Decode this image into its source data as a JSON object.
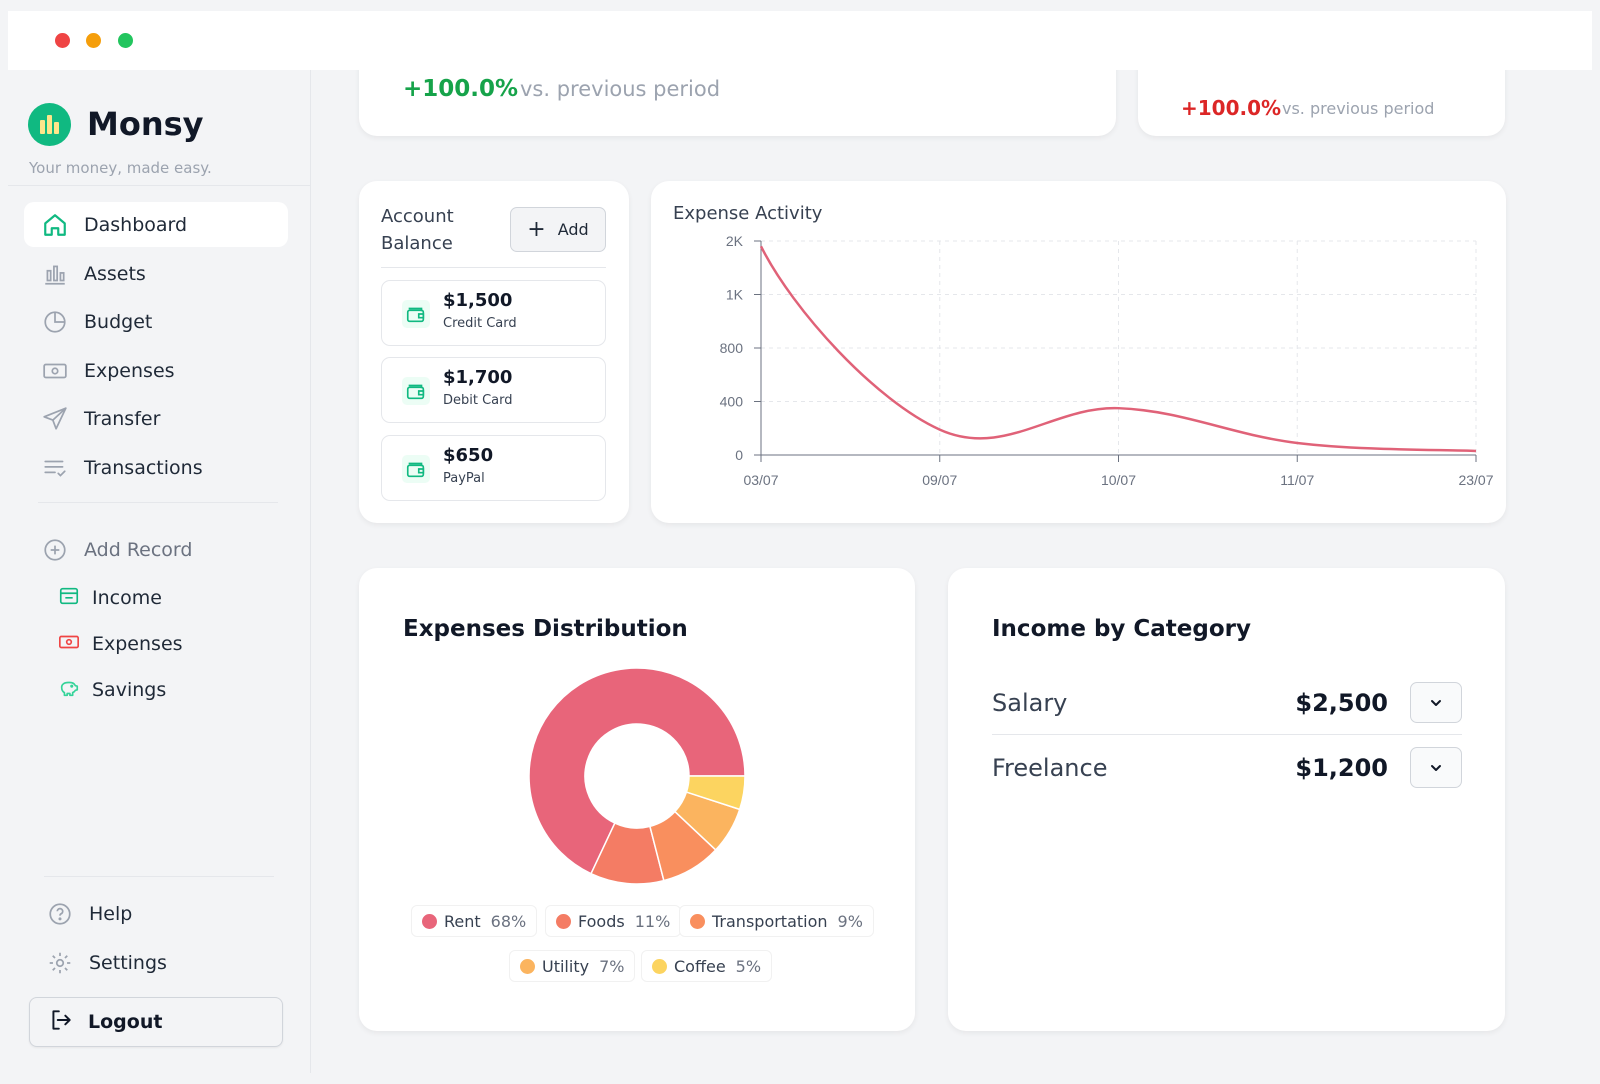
{
  "brand": {
    "name": "Monsy",
    "tagline": "Your money, made easy."
  },
  "nav": [
    {
      "label": "Dashboard",
      "icon": "home-icon",
      "active": true
    },
    {
      "label": "Assets",
      "icon": "assets-icon"
    },
    {
      "label": "Budget",
      "icon": "budget-icon"
    },
    {
      "label": "Expenses",
      "icon": "expenses-icon"
    },
    {
      "label": "Transfer",
      "icon": "transfer-icon"
    },
    {
      "label": "Transactions",
      "icon": "transactions-icon"
    }
  ],
  "add_record": {
    "label": "Add Record",
    "items": [
      {
        "label": "Income",
        "icon": "income-icon"
      },
      {
        "label": "Expenses",
        "icon": "expense-record-icon"
      },
      {
        "label": "Savings",
        "icon": "savings-icon"
      }
    ]
  },
  "footer_nav": {
    "help": "Help",
    "settings": "Settings",
    "logout": "Logout"
  },
  "stats": {
    "left": {
      "change": "+100.0%",
      "vs": "vs. previous period",
      "color": "#16a34a"
    },
    "right": {
      "change": "+100.0%",
      "vs": "vs. previous period",
      "color": "#dc2626"
    }
  },
  "account_balance": {
    "title": "Account Balance",
    "add_label": "Add",
    "accounts": [
      {
        "amount": "$1,500",
        "type": "Credit Card"
      },
      {
        "amount": "$1,700",
        "type": "Debit Card"
      },
      {
        "amount": "$650",
        "type": "PayPal"
      }
    ]
  },
  "chart_data": [
    {
      "type": "line",
      "title": "Expense Activity",
      "categories": [
        "03/07",
        "09/07",
        "10/07",
        "11/07",
        "23/07"
      ],
      "y_ticks": [
        "0",
        "400",
        "800",
        "1K",
        "2K"
      ],
      "y_tick_values": [
        0,
        400,
        800,
        1000,
        2000
      ],
      "values": [
        1900,
        190,
        350,
        90,
        30
      ],
      "series_color": "#e06278",
      "grid": true
    },
    {
      "type": "pie",
      "title": "Expenses Distribution",
      "labels": [
        "Rent",
        "Foods",
        "Transportation",
        "Utility",
        "Coffee"
      ],
      "values": [
        68,
        11,
        9,
        7,
        5
      ],
      "value_labels": [
        "68%",
        "11%",
        "9%",
        "7%",
        "5%"
      ],
      "colors": [
        "#e8657a",
        "#f47c64",
        "#f98f5e",
        "#fbb45f",
        "#fcd460"
      ],
      "donut": true
    }
  ],
  "income_by_category": {
    "title": "Income by Category",
    "rows": [
      {
        "name": "Salary",
        "amount": "$2,500"
      },
      {
        "name": "Freelance",
        "amount": "$1,200"
      }
    ]
  }
}
